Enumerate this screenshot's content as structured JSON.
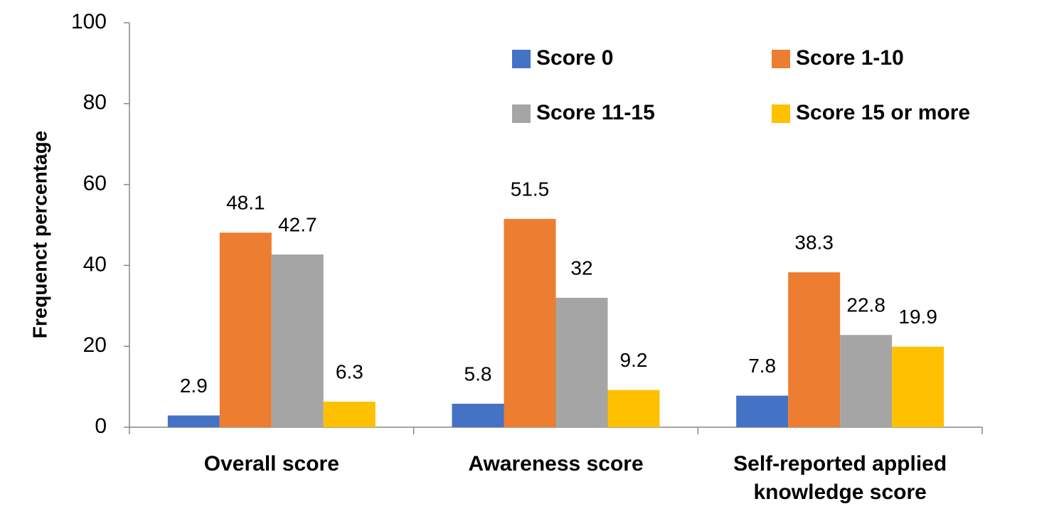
{
  "chart_data": {
    "type": "bar",
    "y_label": "Frequenct percentage",
    "categories": [
      "Overall score",
      "Awareness score",
      "Self-reported applied knowledge score"
    ],
    "series": [
      {
        "name": "Score 0",
        "color": "#4472c4",
        "values": [
          2.9,
          5.8,
          7.8
        ]
      },
      {
        "name": "Score 1-10",
        "color": "#ed7d31",
        "values": [
          48.1,
          51.5,
          38.3
        ]
      },
      {
        "name": "Score 11-15",
        "color": "#a5a5a5",
        "values": [
          42.7,
          32,
          22.8
        ]
      },
      {
        "name": "Score 15 or more",
        "color": "#ffc000",
        "values": [
          6.3,
          9.2,
          19.9
        ]
      }
    ],
    "ylim": [
      0,
      100
    ],
    "yticks": [
      0,
      20,
      40,
      60,
      80,
      100
    ],
    "grid": false,
    "legend": "upper right"
  }
}
